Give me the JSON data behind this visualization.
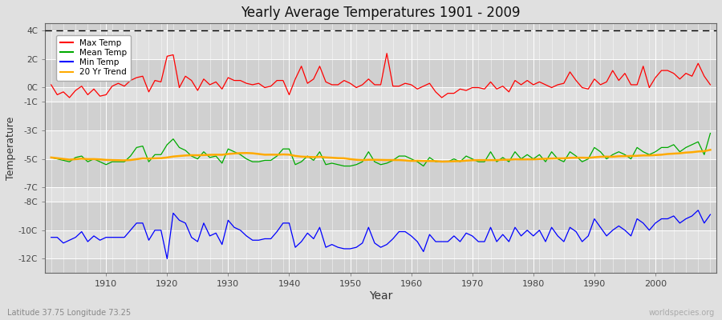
{
  "title": "Yearly Average Temperatures 1901 - 2009",
  "xlabel": "Year",
  "ylabel": "Temperature",
  "subtitle_left": "Latitude 37.75 Longitude 73.25",
  "subtitle_right": "worldspecies.org",
  "years": [
    1901,
    1902,
    1903,
    1904,
    1905,
    1906,
    1907,
    1908,
    1909,
    1910,
    1911,
    1912,
    1913,
    1914,
    1915,
    1916,
    1917,
    1918,
    1919,
    1920,
    1921,
    1922,
    1923,
    1924,
    1925,
    1926,
    1927,
    1928,
    1929,
    1930,
    1931,
    1932,
    1933,
    1934,
    1935,
    1936,
    1937,
    1938,
    1939,
    1940,
    1941,
    1942,
    1943,
    1944,
    1945,
    1946,
    1947,
    1948,
    1949,
    1950,
    1951,
    1952,
    1953,
    1954,
    1955,
    1956,
    1957,
    1958,
    1959,
    1960,
    1961,
    1962,
    1963,
    1964,
    1965,
    1966,
    1967,
    1968,
    1969,
    1970,
    1971,
    1972,
    1973,
    1974,
    1975,
    1976,
    1977,
    1978,
    1979,
    1980,
    1981,
    1982,
    1983,
    1984,
    1985,
    1986,
    1987,
    1988,
    1989,
    1990,
    1991,
    1992,
    1993,
    1994,
    1995,
    1996,
    1997,
    1998,
    1999,
    2000,
    2001,
    2002,
    2003,
    2004,
    2005,
    2006,
    2007,
    2008,
    2009
  ],
  "max_temp": [
    0.2,
    -0.5,
    -0.3,
    -0.7,
    -0.2,
    0.1,
    -0.5,
    -0.1,
    -0.6,
    -0.5,
    0.1,
    0.3,
    0.1,
    0.5,
    0.7,
    0.8,
    -0.3,
    0.5,
    0.4,
    2.2,
    2.3,
    0.0,
    0.8,
    0.5,
    -0.2,
    0.6,
    0.2,
    0.4,
    -0.1,
    0.7,
    0.5,
    0.5,
    0.3,
    0.2,
    0.3,
    0.0,
    0.1,
    0.5,
    0.5,
    -0.5,
    0.6,
    1.5,
    0.3,
    0.6,
    1.5,
    0.4,
    0.2,
    0.2,
    0.5,
    0.3,
    0.0,
    0.2,
    0.6,
    0.2,
    0.2,
    2.4,
    0.1,
    0.1,
    0.3,
    0.2,
    -0.1,
    0.1,
    0.3,
    -0.3,
    -0.7,
    -0.4,
    -0.4,
    -0.1,
    -0.2,
    0.0,
    0.0,
    -0.1,
    0.4,
    -0.1,
    0.1,
    -0.3,
    0.5,
    0.2,
    0.5,
    0.2,
    0.4,
    0.2,
    0.0,
    0.2,
    0.3,
    1.1,
    0.5,
    0.0,
    -0.1,
    0.6,
    0.2,
    0.4,
    1.2,
    0.5,
    1.0,
    0.2,
    0.2,
    1.5,
    0.0,
    0.7,
    1.2,
    1.2,
    1.0,
    0.6,
    1.0,
    0.8,
    1.7,
    0.8,
    0.2
  ],
  "mean_temp": [
    -4.9,
    -5.0,
    -5.1,
    -5.2,
    -4.9,
    -4.8,
    -5.2,
    -5.0,
    -5.2,
    -5.4,
    -5.2,
    -5.2,
    -5.2,
    -4.8,
    -4.2,
    -4.1,
    -5.2,
    -4.7,
    -4.7,
    -4.0,
    -3.6,
    -4.2,
    -4.4,
    -4.8,
    -5.0,
    -4.5,
    -4.9,
    -4.8,
    -5.3,
    -4.3,
    -4.5,
    -4.7,
    -5.0,
    -5.2,
    -5.2,
    -5.1,
    -5.1,
    -4.8,
    -4.3,
    -4.3,
    -5.4,
    -5.2,
    -4.8,
    -5.1,
    -4.5,
    -5.4,
    -5.3,
    -5.4,
    -5.5,
    -5.5,
    -5.4,
    -5.2,
    -4.5,
    -5.2,
    -5.4,
    -5.3,
    -5.1,
    -4.8,
    -4.8,
    -5.0,
    -5.2,
    -5.5,
    -4.9,
    -5.2,
    -5.2,
    -5.2,
    -5.0,
    -5.2,
    -4.8,
    -5.0,
    -5.2,
    -5.2,
    -4.5,
    -5.2,
    -4.9,
    -5.2,
    -4.5,
    -5.0,
    -4.7,
    -5.0,
    -4.7,
    -5.2,
    -4.5,
    -5.0,
    -5.2,
    -4.5,
    -4.8,
    -5.2,
    -5.0,
    -4.2,
    -4.5,
    -5.0,
    -4.7,
    -4.5,
    -4.7,
    -5.0,
    -4.2,
    -4.5,
    -4.7,
    -4.5,
    -4.2,
    -4.2,
    -4.0,
    -4.5,
    -4.2,
    -4.0,
    -3.8,
    -4.7,
    -3.2
  ],
  "min_temp": [
    -10.5,
    -10.5,
    -10.9,
    -10.7,
    -10.5,
    -10.1,
    -10.8,
    -10.4,
    -10.7,
    -10.5,
    -10.5,
    -10.5,
    -10.5,
    -10.0,
    -9.5,
    -9.5,
    -10.7,
    -10.0,
    -10.0,
    -12.0,
    -8.8,
    -9.3,
    -9.5,
    -10.5,
    -10.8,
    -9.5,
    -10.4,
    -10.2,
    -11.0,
    -9.3,
    -9.8,
    -10.0,
    -10.4,
    -10.7,
    -10.7,
    -10.6,
    -10.6,
    -10.1,
    -9.5,
    -9.5,
    -11.2,
    -10.8,
    -10.2,
    -10.6,
    -9.8,
    -11.2,
    -11.0,
    -11.2,
    -11.3,
    -11.3,
    -11.2,
    -10.9,
    -9.8,
    -10.9,
    -11.2,
    -11.0,
    -10.6,
    -10.1,
    -10.1,
    -10.4,
    -10.8,
    -11.5,
    -10.3,
    -10.8,
    -10.8,
    -10.8,
    -10.4,
    -10.8,
    -10.2,
    -10.4,
    -10.8,
    -10.8,
    -9.8,
    -10.8,
    -10.3,
    -10.8,
    -9.8,
    -10.4,
    -10.0,
    -10.4,
    -10.0,
    -10.8,
    -9.8,
    -10.4,
    -10.8,
    -9.8,
    -10.1,
    -10.8,
    -10.4,
    -9.2,
    -9.8,
    -10.4,
    -10.0,
    -9.7,
    -10.0,
    -10.4,
    -9.2,
    -9.5,
    -10.0,
    -9.5,
    -9.2,
    -9.2,
    -9.0,
    -9.5,
    -9.2,
    -9.0,
    -8.6,
    -9.5,
    -8.9
  ],
  "max_color": "#ff0000",
  "mean_color": "#00aa00",
  "min_color": "#0000ff",
  "trend_color": "#ffaa00",
  "bg_color": "#e0e0e0",
  "plot_bg_color": "#d8d8d8",
  "band_colors": [
    "#d0d0d0",
    "#e0e0e0"
  ],
  "grid_color": "#ffffff",
  "dashed_line_y": 4.0,
  "ylim_min": -13.0,
  "ylim_max": 4.5,
  "ytick_positions": [
    4,
    2,
    0,
    -1,
    -3,
    -5,
    -7,
    -8,
    -10,
    -12
  ],
  "ytick_labels": [
    "4C",
    "2C",
    "0C",
    "-1C",
    "-3C",
    "-5C",
    "-7C",
    "-8C",
    "-10C",
    "-12C"
  ],
  "xtick_years": [
    1910,
    1920,
    1930,
    1940,
    1950,
    1960,
    1970,
    1980,
    1990,
    2000
  ],
  "legend_labels": [
    "Max Temp",
    "Mean Temp",
    "Min Temp",
    "20 Yr Trend"
  ],
  "legend_colors": [
    "#ff0000",
    "#00aa00",
    "#0000ff",
    "#ffaa00"
  ],
  "year_start": 1901,
  "year_end": 2009
}
